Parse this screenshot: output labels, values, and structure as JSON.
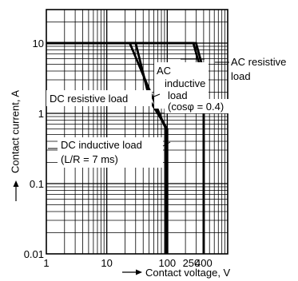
{
  "chart_data": {
    "type": "line",
    "xlabel": "Contact voltage, V",
    "ylabel": "Contact current, A",
    "x_scale": "log",
    "y_scale": "log",
    "xlim": [
      1,
      1000
    ],
    "ylim": [
      0.01,
      30
    ],
    "grid": true,
    "x_tick_labels": [
      {
        "value": 1,
        "label": "1"
      },
      {
        "value": 10,
        "label": "10"
      },
      {
        "value": 100,
        "label": "100"
      },
      {
        "value": 250,
        "label": "250"
      },
      {
        "value": 400,
        "label": "400"
      }
    ],
    "y_tick_labels": [
      {
        "value": 0.01,
        "label": "0.01"
      },
      {
        "value": 0.1,
        "label": "0.1"
      },
      {
        "value": 1,
        "label": "1"
      },
      {
        "value": 10,
        "label": "10"
      }
    ],
    "series": [
      {
        "name": "DC resistive load",
        "x": [
          1,
          30,
          52,
          100,
          100
        ],
        "y": [
          10,
          10,
          1.5,
          0.6,
          0.01
        ]
      },
      {
        "name": "DC inductive load (L/R = 7 ms)",
        "x": [
          1,
          24,
          95,
          95
        ],
        "y": [
          10,
          10,
          0.6,
          0.01
        ]
      },
      {
        "name": "AC inductive load (cosφ = 0.4)",
        "x": [
          1,
          300,
          400,
          400
        ],
        "y": [
          10,
          10,
          4,
          0.01
        ]
      },
      {
        "name": "AC resistive load",
        "x": [
          1,
          270,
          400,
          400
        ],
        "y": [
          10,
          10,
          3,
          0.01
        ]
      }
    ],
    "annotations": {
      "ac_resistive": [
        "AC resistive",
        "load"
      ],
      "ac_inductive": [
        "AC",
        "inductive",
        "load",
        "(cosφ = 0.4)"
      ],
      "dc_resistive": "DC resistive load",
      "dc_inductive": [
        "DC inductive load",
        "(L/R = 7 ms)"
      ]
    }
  }
}
